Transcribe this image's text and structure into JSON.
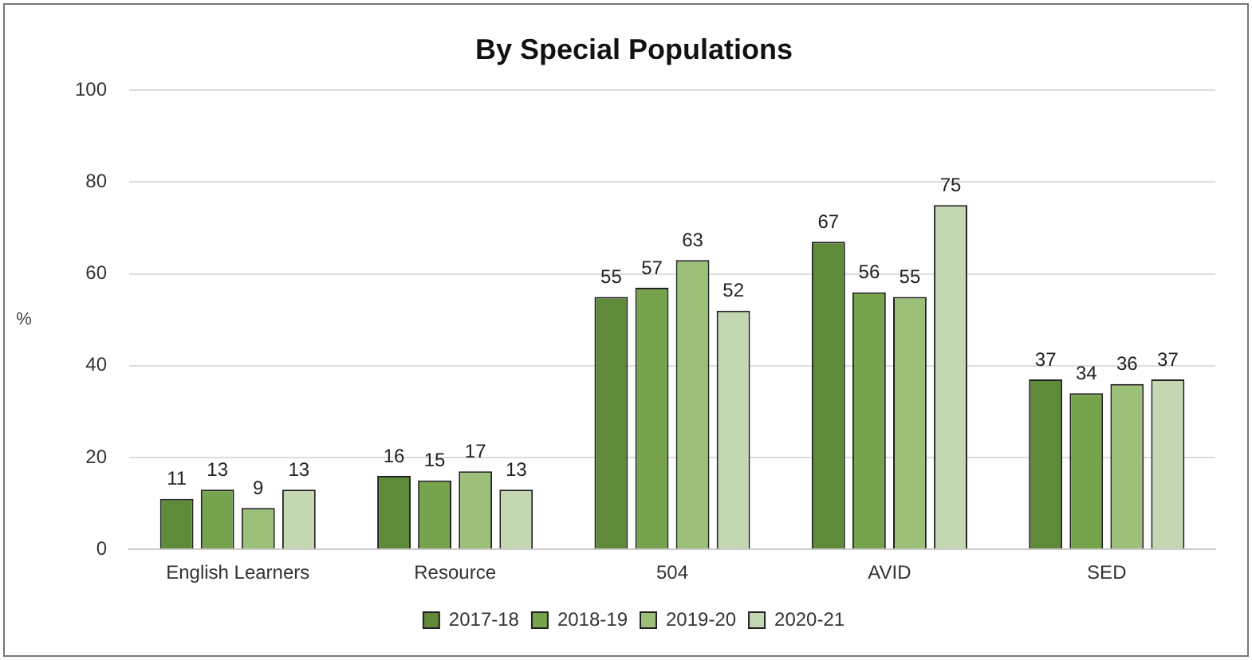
{
  "chart_data": {
    "type": "bar",
    "title": "By Special Populations",
    "ylabel": "%",
    "categories": [
      "English Learners",
      "Resource",
      "504",
      "AVID",
      "SED"
    ],
    "series": [
      {
        "name": "2017-18",
        "color": "#5f8a3a",
        "values": [
          11,
          16,
          55,
          67,
          37
        ]
      },
      {
        "name": "2018-19",
        "color": "#77a34d",
        "values": [
          13,
          15,
          57,
          56,
          34
        ]
      },
      {
        "name": "2019-20",
        "color": "#9cc07a",
        "values": [
          9,
          17,
          63,
          55,
          36
        ]
      },
      {
        "name": "2020-21",
        "color": "#c3d8b2",
        "values": [
          13,
          13,
          52,
          75,
          37
        ]
      }
    ],
    "ylim": [
      0,
      100
    ],
    "yticks": [
      0,
      20,
      40,
      60,
      80,
      100
    ],
    "grid": "y",
    "legend": "bottom",
    "data_labels": true
  }
}
